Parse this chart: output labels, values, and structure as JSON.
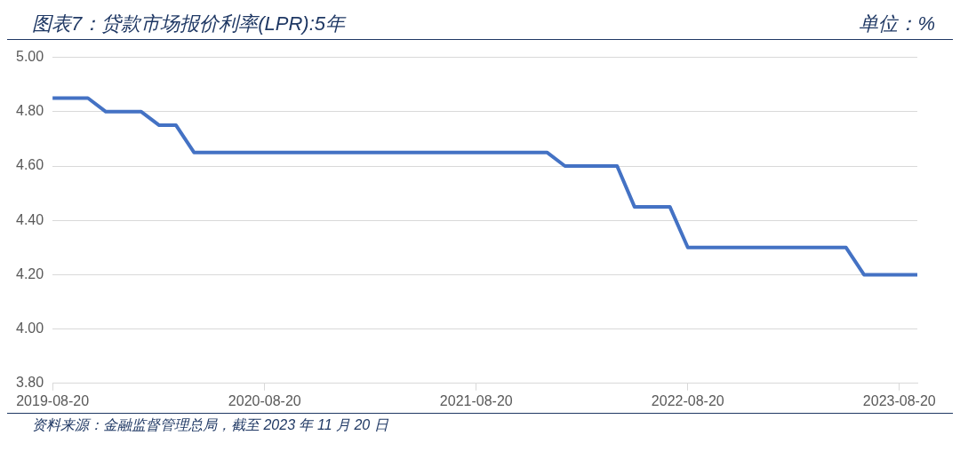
{
  "chart_data": {
    "type": "line",
    "title": "图表7：贷款市场报价利率(LPR):5年",
    "annotations": [
      "单位：%",
      "资料来源：金融监督管理总局，截至 2023 年 11 月 20 日"
    ],
    "x": [
      "2019-08-20",
      "2019-09-20",
      "2019-10-20",
      "2019-11-20",
      "2019-12-20",
      "2020-01-20",
      "2020-02-20",
      "2020-03-20",
      "2020-04-20",
      "2020-05-20",
      "2020-06-20",
      "2020-07-20",
      "2020-08-20",
      "2020-09-20",
      "2020-10-20",
      "2020-11-20",
      "2020-12-20",
      "2021-01-20",
      "2021-02-20",
      "2021-03-20",
      "2021-04-20",
      "2021-05-20",
      "2021-06-20",
      "2021-07-20",
      "2021-08-20",
      "2021-09-20",
      "2021-10-20",
      "2021-11-20",
      "2021-12-20",
      "2022-01-20",
      "2022-02-20",
      "2022-03-20",
      "2022-04-20",
      "2022-05-20",
      "2022-06-20",
      "2022-07-20",
      "2022-08-20",
      "2022-09-20",
      "2022-10-20",
      "2022-11-20",
      "2022-12-20",
      "2023-01-20",
      "2023-02-20",
      "2023-03-20",
      "2023-04-20",
      "2023-05-20",
      "2023-06-20",
      "2023-07-20",
      "2023-08-20",
      "2023-09-20"
    ],
    "series": [
      {
        "color": "#4472c4",
        "values": [
          4.85,
          4.85,
          4.85,
          4.8,
          4.8,
          4.8,
          4.75,
          4.75,
          4.65,
          4.65,
          4.65,
          4.65,
          4.65,
          4.65,
          4.65,
          4.65,
          4.65,
          4.65,
          4.65,
          4.65,
          4.65,
          4.65,
          4.65,
          4.65,
          4.65,
          4.65,
          4.65,
          4.65,
          4.65,
          4.6,
          4.6,
          4.6,
          4.6,
          4.45,
          4.45,
          4.45,
          4.3,
          4.3,
          4.3,
          4.3,
          4.3,
          4.3,
          4.3,
          4.3,
          4.3,
          4.3,
          4.2,
          4.2,
          4.2,
          4.2
        ]
      }
    ],
    "xlim": [
      "2019-08-20",
      "2023-09-20"
    ],
    "xticks": [
      "2019-08-20",
      "2020-08-20",
      "2021-08-20",
      "2022-08-20",
      "2023-08-20"
    ],
    "ylim": [
      3.8,
      5.0
    ],
    "yticks": [
      {
        "value": 3.8,
        "label": "3.80"
      },
      {
        "value": 4.0,
        "label": "4.00"
      },
      {
        "value": 4.2,
        "label": "4.20"
      },
      {
        "value": 4.4,
        "label": "4.40"
      },
      {
        "value": 4.6,
        "label": "4.60"
      },
      {
        "value": 4.8,
        "label": "4.80"
      },
      {
        "value": 5.0,
        "label": "5.00"
      }
    ],
    "grid": "y",
    "legend": false,
    "marker": "none",
    "line_style": "solid"
  }
}
